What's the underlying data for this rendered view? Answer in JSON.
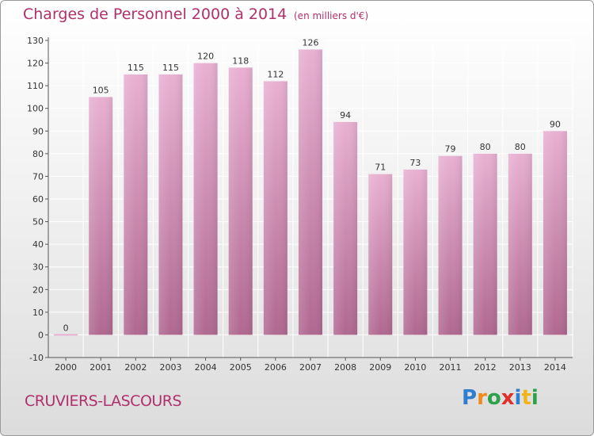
{
  "header": {
    "title": "Charges de Personnel 2000 à 2014",
    "subtitle": "(en milliers d'€)"
  },
  "footer": {
    "commune": "CRUVIERS-LASCOURS",
    "logo_text": "Proxiti",
    "logo_letters": [
      {
        "char": "P",
        "color": "#2f7fd0"
      },
      {
        "char": "r",
        "color": "#f08a1a"
      },
      {
        "char": "o",
        "color": "#2aa14a"
      },
      {
        "char": "x",
        "color": "#e0302a"
      },
      {
        "char": "i",
        "color": "#2f7fd0"
      },
      {
        "char": "t",
        "color": "#f0b41a"
      },
      {
        "char": "i",
        "color": "#2aa14a"
      }
    ]
  },
  "colors": {
    "bar_top": "#e8b0d2",
    "bar_bottom": "#b06890",
    "text_accent": "#b0306a",
    "grid": "#ffffff"
  },
  "chart_data": {
    "type": "bar",
    "title": "Charges de Personnel 2000 à 2014",
    "subtitle": "(en milliers d'€)",
    "xlabel": "",
    "ylabel": "",
    "categories": [
      "2000",
      "2001",
      "2002",
      "2003",
      "2004",
      "2005",
      "2006",
      "2007",
      "2008",
      "2009",
      "2010",
      "2011",
      "2012",
      "2013",
      "2014"
    ],
    "values": [
      0,
      105,
      115,
      115,
      120,
      118,
      112,
      126,
      94,
      71,
      73,
      79,
      80,
      80,
      90
    ],
    "ylim": [
      -10,
      130
    ],
    "yticks": [
      -10,
      0,
      10,
      20,
      30,
      40,
      50,
      60,
      70,
      80,
      90,
      100,
      110,
      120,
      130
    ],
    "grid": true,
    "legend": "none"
  }
}
